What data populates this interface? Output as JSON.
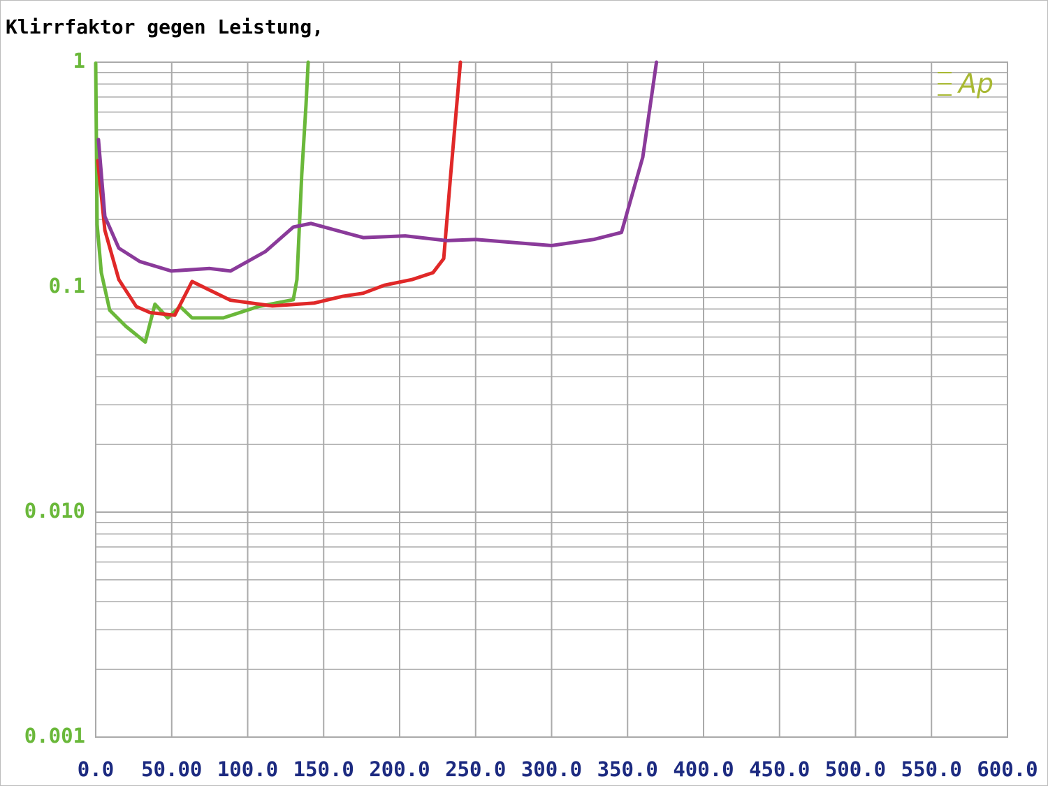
{
  "chart_data": {
    "type": "line",
    "title": "Klirrfaktor gegen Leistung,",
    "logo": "Ap",
    "logo_color": "#a8b832",
    "yscale": "log",
    "grid": true,
    "xlim": [
      0,
      600
    ],
    "ylim": [
      0.001,
      1
    ],
    "xticks": [
      {
        "value": 0,
        "label": "0.0"
      },
      {
        "value": 50,
        "label": "50.00"
      },
      {
        "value": 100,
        "label": "100.0"
      },
      {
        "value": 150,
        "label": "150.0"
      },
      {
        "value": 200,
        "label": "200.0"
      },
      {
        "value": 250,
        "label": "250.0"
      },
      {
        "value": 300,
        "label": "300.0"
      },
      {
        "value": 350,
        "label": "350.0"
      },
      {
        "value": 400,
        "label": "400.0"
      },
      {
        "value": 450,
        "label": "450.0"
      },
      {
        "value": 500,
        "label": "500.0"
      },
      {
        "value": 550,
        "label": "550.0"
      },
      {
        "value": 600,
        "label": "600.0"
      }
    ],
    "yticks": [
      0.001,
      {
        "value": 0.01,
        "label": "0.010"
      },
      0.1,
      1
    ],
    "yminorticks": [
      0.002,
      0.003,
      0.004,
      0.005,
      0.006,
      0.007,
      0.008,
      0.009,
      0.02,
      0.03,
      0.04,
      0.05,
      0.06,
      0.07,
      0.08,
      0.09,
      0.2,
      0.3,
      0.4,
      0.5,
      0.6,
      0.7,
      0.8,
      0.9
    ],
    "xtick_color": "#1c2a80",
    "ytick_color": "#6ab83a",
    "series": [
      {
        "color": "#6ab83a",
        "x": [
          0,
          0.9,
          3.7,
          9.2,
          19.8,
          32.6,
          39,
          47.4,
          55.6,
          63.4,
          84,
          107,
          130,
          132.4,
          135.6,
          138.4,
          139.8
        ],
        "values": [
          0.99,
          0.19,
          0.116,
          0.079,
          0.067,
          0.057,
          0.084,
          0.073,
          0.082,
          0.073,
          0.073,
          0.082,
          0.088,
          0.108,
          0.317,
          0.647,
          1
        ]
      },
      {
        "color": "#e02828",
        "x": [
          1.4,
          6,
          15.2,
          26.7,
          35.9,
          52,
          63.4,
          75,
          88.7,
          116.3,
          143.9,
          162.3,
          176,
          190,
          208,
          222,
          229,
          233.6,
          236.8,
          240
        ],
        "values": [
          0.365,
          0.179,
          0.108,
          0.082,
          0.077,
          0.075,
          0.106,
          0.097,
          0.0875,
          0.0825,
          0.085,
          0.091,
          0.094,
          0.102,
          0.108,
          0.116,
          0.134,
          0.317,
          0.56,
          1
        ]
      },
      {
        "color": "#8a3a9a",
        "x": [
          1.8,
          6,
          15.2,
          29,
          49.7,
          75,
          88.7,
          111.7,
          130,
          141.6,
          176,
          203.7,
          231,
          250,
          300,
          327.8,
          346,
          360,
          369
        ],
        "values": [
          0.453,
          0.206,
          0.149,
          0.13,
          0.118,
          0.121,
          0.118,
          0.144,
          0.185,
          0.192,
          0.166,
          0.169,
          0.161,
          0.163,
          0.153,
          0.163,
          0.175,
          0.378,
          1
        ]
      }
    ]
  }
}
